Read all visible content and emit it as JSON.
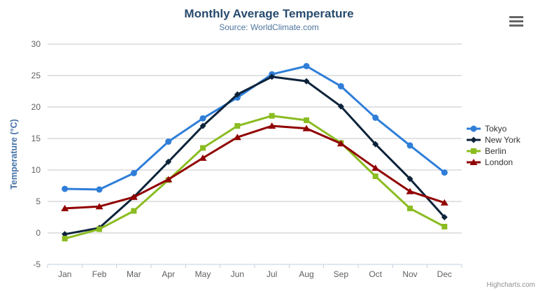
{
  "chart": {
    "title": "Monthly Average Temperature",
    "subtitle": "Source: WorldClimate.com",
    "credits": "Highcharts.com",
    "export_icon": "hamburger-icon"
  },
  "colors": {
    "title": "#274b6d",
    "subtitle": "#4d759e",
    "axis_label": "#606060",
    "y_axis_title": "#4572a7",
    "gridline": "#c6c6c6",
    "axis_line": "#c0d0e0",
    "legend_text": "#333333",
    "credits_text": "#909090"
  },
  "chart_data": {
    "type": "line",
    "title": "Monthly Average Temperature",
    "subtitle": "Source: WorldClimate.com",
    "xlabel": "",
    "ylabel": "Temperature (°C)",
    "categories": [
      "Jan",
      "Feb",
      "Mar",
      "Apr",
      "May",
      "Jun",
      "Jul",
      "Aug",
      "Sep",
      "Oct",
      "Nov",
      "Dec"
    ],
    "series": [
      {
        "name": "Tokyo",
        "color": "#2f7ed8",
        "marker": "circle",
        "values": [
          7.0,
          6.9,
          9.5,
          14.5,
          18.2,
          21.5,
          25.2,
          26.5,
          23.3,
          18.3,
          13.9,
          9.6
        ]
      },
      {
        "name": "New York",
        "color": "#0d233a",
        "marker": "diamond",
        "values": [
          -0.2,
          0.8,
          5.7,
          11.3,
          17.0,
          22.0,
          24.8,
          24.1,
          20.1,
          14.1,
          8.6,
          2.5
        ]
      },
      {
        "name": "Berlin",
        "color": "#8bbc21",
        "marker": "square",
        "values": [
          -0.9,
          0.6,
          3.5,
          8.4,
          13.5,
          17.0,
          18.6,
          17.9,
          14.3,
          9.0,
          3.9,
          1.0
        ]
      },
      {
        "name": "London",
        "color": "#910000",
        "marker": "triangle",
        "values": [
          3.9,
          4.2,
          5.7,
          8.5,
          11.9,
          15.2,
          17.0,
          16.6,
          14.2,
          10.3,
          6.6,
          4.8
        ]
      }
    ],
    "ylim": [
      -5,
      30
    ],
    "y_tick_interval": 5,
    "grid": true,
    "legend_position": "right"
  }
}
